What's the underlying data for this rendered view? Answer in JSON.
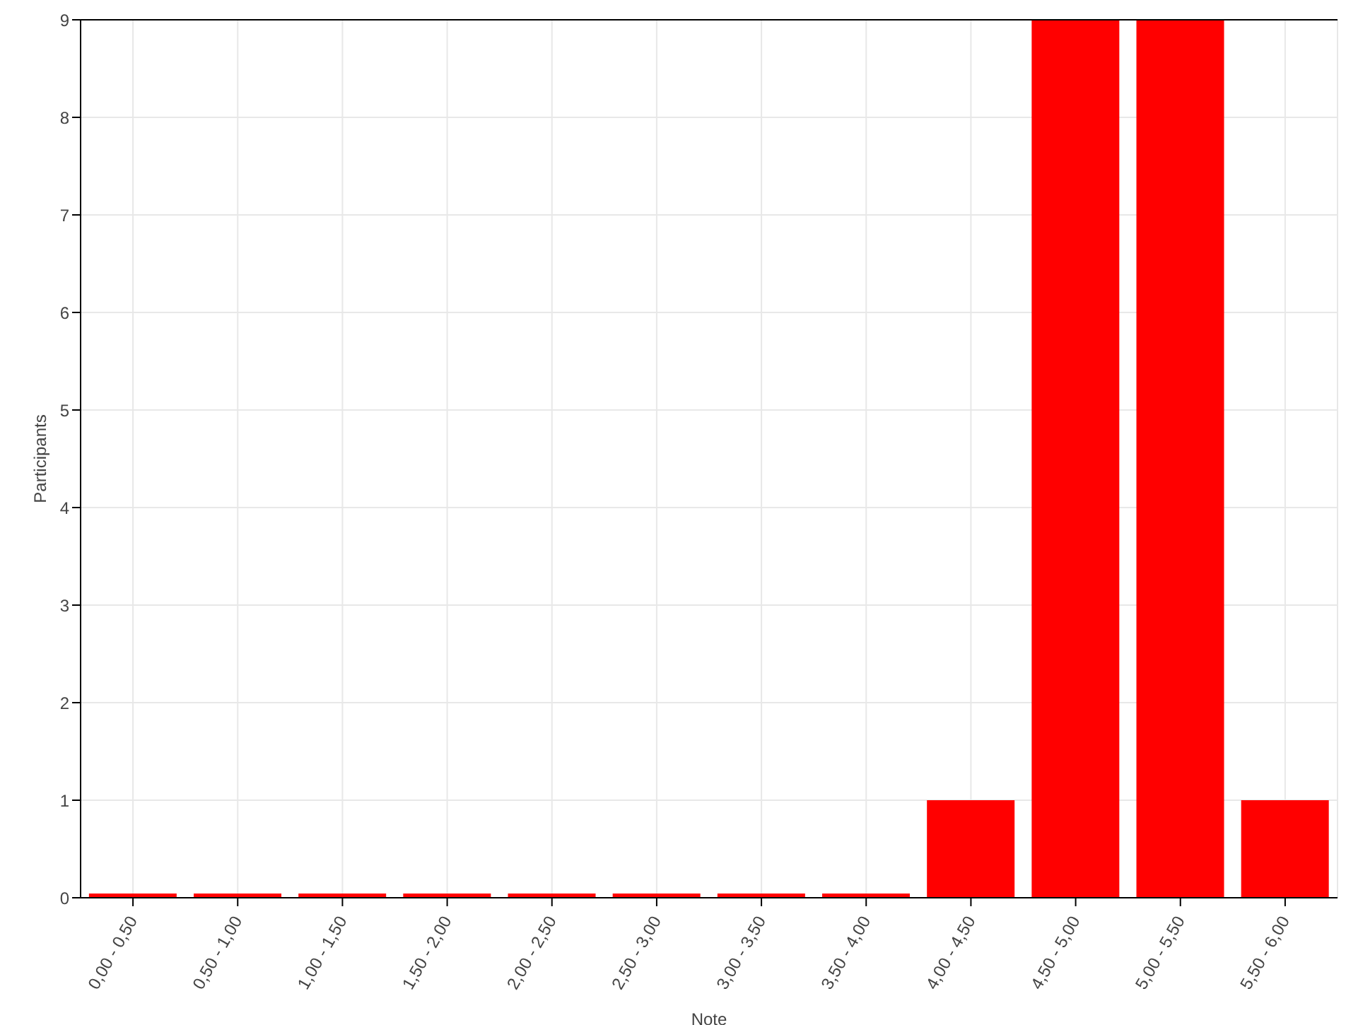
{
  "chart_data": {
    "type": "bar",
    "xlabel": "Note",
    "ylabel": "Participants",
    "categories": [
      "0,00 - 0,50",
      "0,50 - 1,00",
      "1,00 - 1,50",
      "1,50 - 2,00",
      "2,00 - 2,50",
      "2,50 - 3,00",
      "3,00 - 3,50",
      "3,50 - 4,00",
      "4,00 - 4,50",
      "4,50 - 5,00",
      "5,00 - 5,50",
      "5,50 - 6,00"
    ],
    "values": [
      0,
      0,
      0,
      0,
      0,
      0,
      0,
      0,
      1,
      9,
      9,
      1
    ],
    "color": "#ff0000",
    "ylim": [
      0,
      9
    ],
    "yticks": [
      0,
      1,
      2,
      3,
      4,
      5,
      6,
      7,
      8,
      9
    ],
    "grid": true
  }
}
